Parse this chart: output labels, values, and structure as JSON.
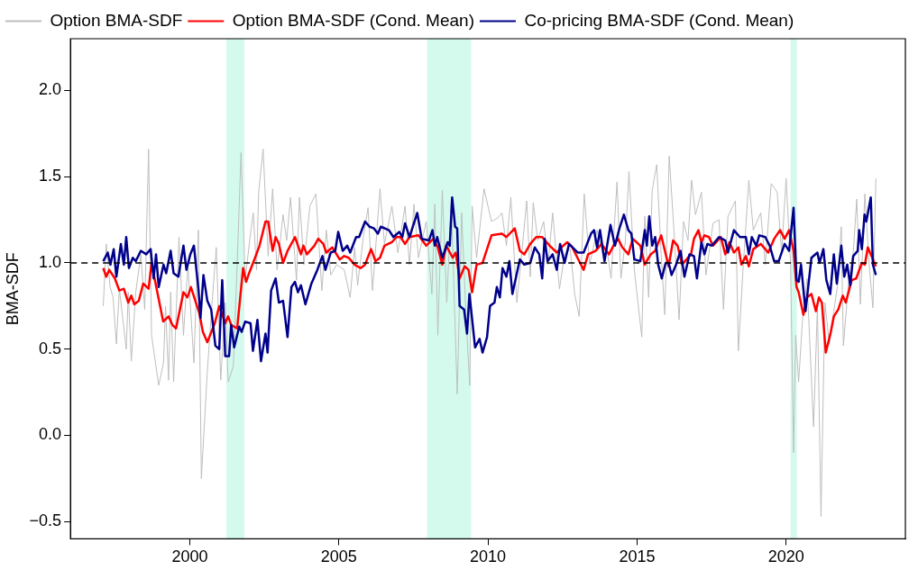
{
  "chart_data": {
    "type": "line",
    "ylabel": "BMA-SDF",
    "xlim": [
      1996,
      2024
    ],
    "xticks": [
      2000,
      2005,
      2010,
      2015,
      2020
    ],
    "ylim": [
      -0.6,
      2.3
    ],
    "yticks": [
      {
        "value": -0.5,
        "label": "−0.5"
      },
      {
        "value": 0,
        "label": "0.0"
      },
      {
        "value": 0.5,
        "label": "0.5"
      },
      {
        "value": 1,
        "label": "1.0"
      },
      {
        "value": 1.5,
        "label": "1.5"
      },
      {
        "value": 2,
        "label": "2.0"
      }
    ],
    "grid": false,
    "legend": "top left",
    "line_style": "solid",
    "marker": "none",
    "ref_lines": [
      {
        "axis": "y",
        "value": 1,
        "color": "#000000",
        "line_style": "dashed"
      }
    ],
    "bands": [
      {
        "axis": "x",
        "from": 2001.23,
        "to": 2001.83,
        "color": "#d4faee"
      },
      {
        "axis": "x",
        "from": 2007.96,
        "to": 2009.43,
        "color": "#d4faee"
      },
      {
        "axis": "x",
        "from": 2020.15,
        "to": 2020.36,
        "color": "#d4faee"
      }
    ],
    "series": [
      {
        "name": "Option BMA-SDF",
        "color": "#bebebe",
        "x": [
          1997.1,
          1997.2,
          1997.33,
          1997.43,
          1997.54,
          1997.64,
          1997.87,
          1997.94,
          1998.04,
          1998.19,
          1998.36,
          1998.49,
          1998.62,
          1998.72,
          1998.96,
          1999.12,
          1999.19,
          1999.29,
          1999.36,
          1999.46,
          1999.64,
          1999.79,
          1999.94,
          2000.14,
          2000.29,
          2000.39,
          2000.59,
          2000.74,
          2000.89,
          2001.04,
          2001.19,
          2001.29,
          2001.46,
          2001.59,
          2001.72,
          2001.86,
          2002.01,
          2002.13,
          2002.24,
          2002.31,
          2002.46,
          2002.63,
          2002.78,
          2002.93,
          2003.13,
          2003.25,
          2003.38,
          2003.58,
          2003.68,
          2003.83,
          2004.03,
          2004.23,
          2004.43,
          2004.58,
          2004.73,
          2004.93,
          2005.18,
          2005.38,
          2005.53,
          2005.63,
          2005.83,
          2005.98,
          2006.13,
          2006.38,
          2006.53,
          2006.78,
          2006.98,
          2007.22,
          2007.37,
          2007.52,
          2007.67,
          2007.93,
          2008.12,
          2008.22,
          2008.32,
          2008.47,
          2008.62,
          2008.77,
          2008.97,
          2009.12,
          2009.27,
          2009.39,
          2009.47,
          2009.62,
          2009.87,
          2010.12,
          2010.32,
          2010.47,
          2010.62,
          2010.77,
          2010.97,
          2011.12,
          2011.3,
          2011.42,
          2011.52,
          2011.67,
          2011.87,
          2012.02,
          2012.17,
          2012.4,
          2012.57,
          2012.76,
          2012.91,
          2013.06,
          2013.23,
          2013.41,
          2013.66,
          2013.86,
          2014.01,
          2014.13,
          2014.33,
          2014.46,
          2014.61,
          2014.73,
          2014.91,
          2015.16,
          2015.26,
          2015.39,
          2015.51,
          2015.66,
          2015.81,
          2015.93,
          2016.08,
          2016.26,
          2016.41,
          2016.56,
          2016.71,
          2016.83,
          2016.96,
          2017.16,
          2017.31,
          2017.55,
          2017.75,
          2017.9,
          2018.05,
          2018.3,
          2018.4,
          2018.55,
          2018.75,
          2018.9,
          2019.15,
          2019.3,
          2019.5,
          2019.7,
          2019.85,
          2020.0,
          2020.15,
          2020.25,
          2020.32,
          2020.42,
          2020.55,
          2020.7,
          2020.92,
          2021.05,
          2021.17,
          2021.3,
          2021.45,
          2021.6,
          2021.75,
          2021.85,
          2021.92,
          2022.1,
          2022.25,
          2022.37,
          2022.49,
          2022.64,
          2022.79,
          2022.91,
          2023.01
        ],
        "values": [
          0.75,
          1.11,
          0.86,
          0.8,
          0.53,
          0.85,
          0.5,
          0.83,
          0.43,
          0.83,
          1.05,
          0.73,
          1.66,
          0.58,
          0.29,
          0.42,
          0.75,
          0.32,
          0.83,
          0.31,
          1.15,
          0.58,
          0.99,
          0.42,
          1.19,
          -0.25,
          0.37,
          0.75,
          1.09,
          0.32,
          0.77,
          0.31,
          0.4,
          0.99,
          1.64,
          0.9,
          1.13,
          1.29,
          0.96,
          1.41,
          1.66,
          1.04,
          1.43,
          0.96,
          1.28,
          1.13,
          1.38,
          0.9,
          1.38,
          0.99,
          1.33,
          1.4,
          0.84,
          1.19,
          0.93,
          0.99,
          0.96,
          0.8,
          1.09,
          0.87,
          1.16,
          1.32,
          0.84,
          1.43,
          1.11,
          1.33,
          1.06,
          1.33,
          0.99,
          1.34,
          1.03,
          1.24,
          0.82,
          1.34,
          0.58,
          1.42,
          0.77,
          1.36,
          0.24,
          1.29,
          0.67,
          0.29,
          1.33,
          1.03,
          1.43,
          1.24,
          1.26,
          1.29,
          1.1,
          1.38,
          0.77,
          1.03,
          1.36,
          0.92,
          1.35,
          1.13,
          1.24,
          0.99,
          1.29,
          0.85,
          1.05,
          1.08,
          0.82,
          0.69,
          1.4,
          0.99,
          1.19,
          1.05,
          1.06,
          0.91,
          1.47,
          0.91,
          1.13,
          1.53,
          0.96,
          0.57,
          1.27,
          0.8,
          1.42,
          1.57,
          1.05,
          0.7,
          1.62,
          1.13,
          0.67,
          1.24,
          1.13,
          1.48,
          1.28,
          1.41,
          0.93,
          1.23,
          1.25,
          0.73,
          1.27,
          1.36,
          0.49,
          0.95,
          1.48,
          1.19,
          1.29,
          0.99,
          1.46,
          1.41,
          1.06,
          1.49,
          0.99,
          -0.1,
          0.58,
          0.31,
          0.67,
          0.91,
          0.05,
          0.75,
          -0.47,
          0.77,
          0.53,
          0.72,
          0.9,
          1.21,
          0.52,
          0.9,
          1.06,
          1.37,
          0.76,
          1.4,
          0.98,
          0.74,
          1.49
        ]
      },
      {
        "name": "Option BMA-SDF (Cond. Mean)",
        "color": "#ff0000",
        "x": [
          1997.1,
          1997.2,
          1997.3,
          1997.49,
          1997.64,
          1997.79,
          1997.94,
          1998.04,
          1998.14,
          1998.29,
          1998.44,
          1998.62,
          1998.72,
          1998.89,
          1999.11,
          1999.29,
          1999.42,
          1999.54,
          1999.79,
          1999.92,
          2000.04,
          2000.32,
          2000.44,
          2000.59,
          2000.84,
          2000.99,
          2001.19,
          2001.29,
          2001.39,
          2001.59,
          2001.79,
          2001.89,
          2001.99,
          2002.19,
          2002.34,
          2002.54,
          2002.63,
          2002.78,
          2002.88,
          2002.99,
          2003.13,
          2003.28,
          2003.53,
          2003.73,
          2003.81,
          2003.93,
          2004.18,
          2004.31,
          2004.48,
          2004.58,
          2004.78,
          2005.03,
          2005.18,
          2005.33,
          2005.53,
          2005.73,
          2005.88,
          2006.08,
          2006.23,
          2006.38,
          2006.53,
          2006.78,
          2006.93,
          2007.07,
          2007.22,
          2007.37,
          2007.67,
          2007.93,
          2008.17,
          2008.32,
          2008.47,
          2008.6,
          2008.82,
          2008.92,
          2009.05,
          2009.22,
          2009.35,
          2009.47,
          2009.62,
          2009.82,
          2010.12,
          2010.47,
          2010.62,
          2010.9,
          2011.07,
          2011.22,
          2011.42,
          2011.62,
          2011.82,
          2012.07,
          2012.31,
          2012.46,
          2012.66,
          2012.83,
          2013.06,
          2013.21,
          2013.36,
          2013.61,
          2013.81,
          2014.06,
          2014.21,
          2014.36,
          2014.51,
          2014.71,
          2014.86,
          2015.11,
          2015.26,
          2015.46,
          2015.61,
          2015.81,
          2016.06,
          2016.21,
          2016.36,
          2016.51,
          2016.81,
          2016.91,
          2017.06,
          2017.16,
          2017.26,
          2017.41,
          2017.55,
          2017.81,
          2017.96,
          2018.1,
          2018.25,
          2018.4,
          2018.5,
          2018.65,
          2018.75,
          2018.9,
          2019.15,
          2019.4,
          2019.6,
          2019.8,
          2019.95,
          2020.1,
          2020.25,
          2020.35,
          2020.42,
          2020.58,
          2020.7,
          2020.85,
          2021.0,
          2021.1,
          2021.2,
          2021.33,
          2021.5,
          2021.6,
          2021.75,
          2021.9,
          2022.0,
          2022.2,
          2022.35,
          2022.54,
          2022.64,
          2022.74,
          2022.89,
          2023.01
        ],
        "values": [
          0.97,
          0.92,
          0.96,
          0.91,
          0.84,
          0.85,
          0.77,
          0.81,
          0.76,
          0.78,
          0.88,
          0.85,
          1.0,
          0.85,
          0.66,
          0.69,
          0.64,
          0.62,
          0.83,
          0.8,
          0.86,
          0.71,
          0.6,
          0.54,
          0.65,
          0.75,
          0.65,
          0.69,
          0.64,
          0.62,
          0.97,
          0.89,
          0.94,
          1.03,
          1.1,
          1.24,
          1.24,
          1.07,
          1.15,
          1.11,
          1.0,
          1.07,
          1.15,
          1.05,
          1.1,
          1.05,
          1.1,
          1.14,
          1.11,
          1.06,
          1.09,
          1.02,
          1.04,
          1.03,
          0.99,
          0.97,
          0.99,
          1.08,
          1.01,
          1.03,
          1.1,
          1.12,
          1.15,
          1.15,
          1.11,
          1.15,
          1.16,
          1.1,
          1.14,
          1.09,
          0.99,
          1.1,
          1.03,
          1.06,
          0.91,
          0.98,
          0.96,
          0.83,
          0.99,
          1.0,
          1.16,
          1.17,
          1.15,
          1.2,
          1.07,
          1.05,
          1.11,
          1.15,
          1.15,
          1.1,
          1.06,
          1.09,
          1.12,
          1.09,
          1.01,
          0.96,
          1.05,
          1.07,
          1.11,
          1.05,
          1.1,
          1.14,
          1.09,
          1.05,
          1.14,
          1.1,
          0.99,
          1.05,
          1.07,
          1.16,
          0.98,
          1.13,
          1.1,
          0.99,
          1.05,
          1.14,
          1.19,
          1.12,
          1.16,
          1.15,
          1.1,
          1.15,
          1.05,
          1.12,
          1.06,
          1.09,
          0.99,
          1.04,
          0.98,
          1.08,
          1.11,
          1.06,
          1.14,
          1.19,
          1.14,
          1.19,
          1.07,
          0.86,
          0.83,
          0.7,
          0.8,
          0.82,
          0.72,
          0.8,
          0.77,
          0.48,
          0.6,
          0.69,
          0.73,
          0.81,
          0.77,
          0.9,
          0.91,
          1.0,
          0.99,
          1.09,
          1.03,
          0.98
        ]
      },
      {
        "name": "Co-pricing BMA-SDF (Cond. Mean)",
        "color": "#00008b",
        "x": [
          1997.1,
          1997.25,
          1997.34,
          1997.45,
          1997.54,
          1997.69,
          1997.79,
          1997.87,
          1997.96,
          1998.09,
          1998.19,
          1998.36,
          1998.54,
          1998.69,
          1998.79,
          1998.87,
          1998.96,
          1999.12,
          1999.21,
          1999.36,
          1999.46,
          1999.62,
          1999.79,
          1999.89,
          2000.02,
          2000.14,
          2000.29,
          2000.36,
          2000.46,
          2000.59,
          2000.72,
          2000.86,
          2000.99,
          2001.09,
          2001.19,
          2001.32,
          2001.39,
          2001.49,
          2001.66,
          2001.74,
          2001.86,
          2002.04,
          2002.12,
          2002.27,
          2002.39,
          2002.54,
          2002.61,
          2002.73,
          2002.88,
          2002.99,
          2003.13,
          2003.28,
          2003.41,
          2003.53,
          2003.63,
          2003.73,
          2003.88,
          2004.08,
          2004.28,
          2004.45,
          2004.55,
          2004.73,
          2004.88,
          2004.98,
          2005.13,
          2005.28,
          2005.38,
          2005.58,
          2005.68,
          2005.88,
          2006.03,
          2006.18,
          2006.31,
          2006.41,
          2006.68,
          2006.83,
          2007.03,
          2007.13,
          2007.22,
          2007.37,
          2007.63,
          2007.78,
          2008.02,
          2008.14,
          2008.22,
          2008.3,
          2008.47,
          2008.65,
          2008.72,
          2008.8,
          2008.9,
          2008.97,
          2009.05,
          2009.2,
          2009.3,
          2009.38,
          2009.57,
          2009.72,
          2009.82,
          2009.97,
          2010.07,
          2010.22,
          2010.3,
          2010.4,
          2010.49,
          2010.62,
          2010.72,
          2010.82,
          2011.07,
          2011.22,
          2011.42,
          2011.57,
          2011.72,
          2011.82,
          2011.9,
          2012.0,
          2012.17,
          2012.31,
          2012.42,
          2012.57,
          2012.72,
          2013.01,
          2013.21,
          2013.46,
          2013.56,
          2013.66,
          2013.76,
          2013.91,
          2014.11,
          2014.26,
          2014.41,
          2014.56,
          2014.71,
          2014.81,
          2014.91,
          2015.11,
          2015.26,
          2015.33,
          2015.41,
          2015.51,
          2015.61,
          2015.71,
          2015.83,
          2015.96,
          2016.06,
          2016.16,
          2016.31,
          2016.46,
          2016.59,
          2016.76,
          2016.91,
          2017.01,
          2017.16,
          2017.26,
          2017.36,
          2017.51,
          2017.75,
          2017.96,
          2018.05,
          2018.25,
          2018.45,
          2018.65,
          2018.75,
          2018.85,
          2019.0,
          2019.1,
          2019.3,
          2019.45,
          2019.6,
          2019.75,
          2019.95,
          2020.1,
          2020.25,
          2020.35,
          2020.42,
          2020.5,
          2020.65,
          2020.85,
          2021.05,
          2021.12,
          2021.25,
          2021.35,
          2021.48,
          2021.6,
          2021.7,
          2021.85,
          2021.95,
          2022.05,
          2022.15,
          2022.25,
          2022.4,
          2022.45,
          2022.54,
          2022.63,
          2022.69,
          2022.84,
          2022.91,
          2023.01
        ],
        "values": [
          1.01,
          1.06,
          0.99,
          1.08,
          0.92,
          1.11,
          0.99,
          1.15,
          0.97,
          1.03,
          1.01,
          1.07,
          1.05,
          1.08,
          0.91,
          1.05,
          0.86,
          0.99,
          0.94,
          1.07,
          0.94,
          0.92,
          1.1,
          0.96,
          1.05,
          1.1,
          0.85,
          0.68,
          0.93,
          0.78,
          0.73,
          0.52,
          0.5,
          0.9,
          0.46,
          0.46,
          0.64,
          0.51,
          0.63,
          0.6,
          0.66,
          0.65,
          0.49,
          0.67,
          0.43,
          0.59,
          0.48,
          0.84,
          0.91,
          0.77,
          0.78,
          0.57,
          0.86,
          0.89,
          0.83,
          0.87,
          0.76,
          0.88,
          0.96,
          1.04,
          0.96,
          1.06,
          1.07,
          1.18,
          1.07,
          1.1,
          1.06,
          1.15,
          1.15,
          1.24,
          1.21,
          1.2,
          1.17,
          1.21,
          1.19,
          1.15,
          1.18,
          1.15,
          1.23,
          1.15,
          1.29,
          1.14,
          1.13,
          1.19,
          1.1,
          1.15,
          1.03,
          1.12,
          1.1,
          1.38,
          1.21,
          1.2,
          0.75,
          0.73,
          0.59,
          0.82,
          0.51,
          0.56,
          0.48,
          0.57,
          0.75,
          0.77,
          0.86,
          0.8,
          0.97,
          0.92,
          1.01,
          0.82,
          1.02,
          0.99,
          1.0,
          1.09,
          1.05,
          0.91,
          1.14,
          1.01,
          1.05,
          0.96,
          1.11,
          1.0,
          1.11,
          1.06,
          1.06,
          1.17,
          1.19,
          1.09,
          1.19,
          1.01,
          1.22,
          1.1,
          1.2,
          1.28,
          1.19,
          1.17,
          1.02,
          1.01,
          1.19,
          1.1,
          1.27,
          1.1,
          1.15,
          0.99,
          0.91,
          1.0,
          1.0,
          0.93,
          0.99,
          1.07,
          0.92,
          1.05,
          1.04,
          0.91,
          1.12,
          1.05,
          1.11,
          1.1,
          1.15,
          1.13,
          1.06,
          1.19,
          1.15,
          1.15,
          1.05,
          1.15,
          1.1,
          1.16,
          1.15,
          1.1,
          1.01,
          1.01,
          1.11,
          1.07,
          1.32,
          0.9,
          0.89,
          0.99,
          0.72,
          1.03,
          1.06,
          1.0,
          1.08,
          0.9,
          0.82,
          1.05,
          0.88,
          1.1,
          0.92,
          0.99,
          0.87,
          1.04,
          1.07,
          1.19,
          1.08,
          1.28,
          1.24,
          1.38,
          0.99,
          0.93
        ]
      }
    ]
  }
}
